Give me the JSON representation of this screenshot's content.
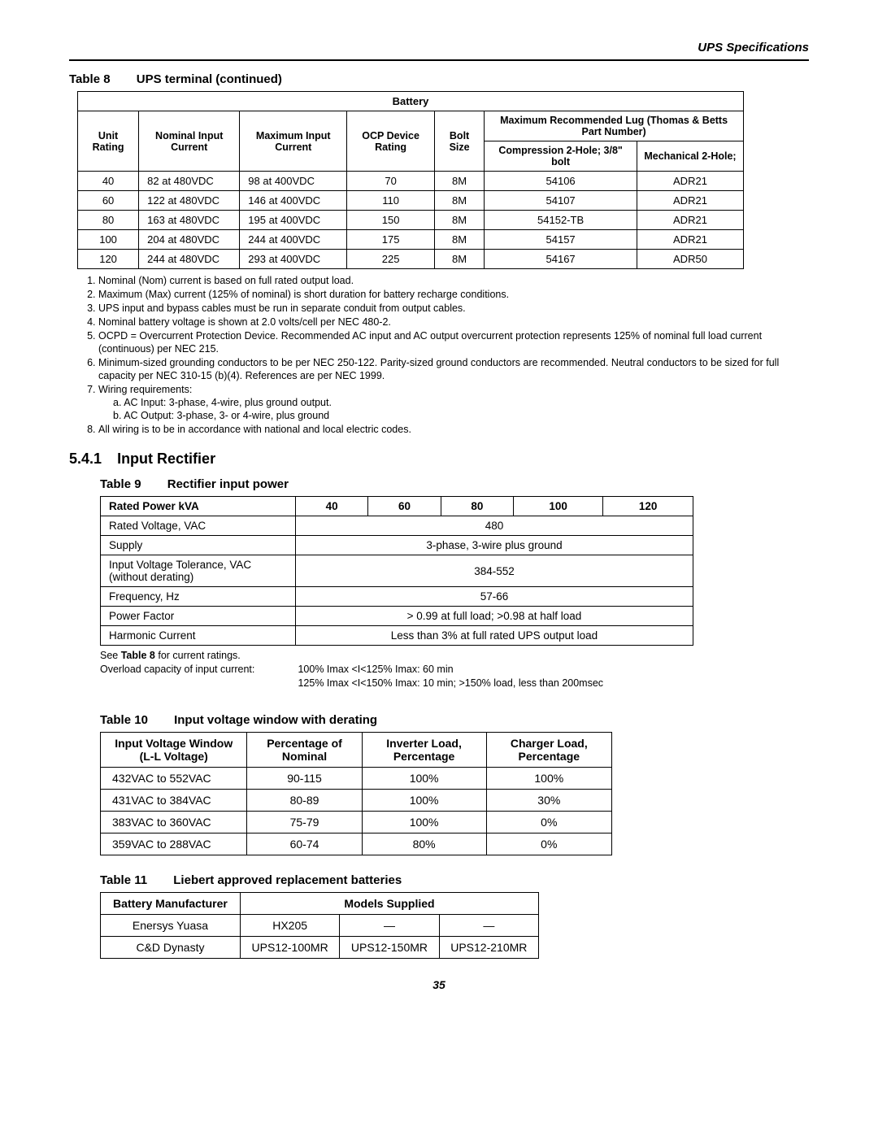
{
  "header": {
    "section_title": "UPS Specifications"
  },
  "table8": {
    "caption_num": "Table 8",
    "caption_text": "UPS terminal (continued)",
    "battery_label": "Battery",
    "head_lug": "Maximum Recommended Lug (Thomas & Betts Part Number)",
    "cols": {
      "unit_rating": "Unit Rating",
      "nom_input": "Nominal Input Current",
      "max_input": "Maximum Input Current",
      "ocp": "OCP Device Rating",
      "bolt": "Bolt Size",
      "compression": "Compression 2-Hole; 3/8\" bolt",
      "mechanical": "Mechanical 2-Hole;"
    },
    "rows": [
      {
        "ur": "40",
        "nom": "82 at 480VDC",
        "max": "98 at 400VDC",
        "ocp": "70",
        "bolt": "8M",
        "comp": "54106",
        "mech": "ADR21"
      },
      {
        "ur": "60",
        "nom": "122 at 480VDC",
        "max": "146 at 400VDC",
        "ocp": "110",
        "bolt": "8M",
        "comp": "54107",
        "mech": "ADR21"
      },
      {
        "ur": "80",
        "nom": "163 at 480VDC",
        "max": "195 at 400VDC",
        "ocp": "150",
        "bolt": "8M",
        "comp": "54152-TB",
        "mech": "ADR21"
      },
      {
        "ur": "100",
        "nom": "204 at 480VDC",
        "max": "244 at 400VDC",
        "ocp": "175",
        "bolt": "8M",
        "comp": "54157",
        "mech": "ADR21"
      },
      {
        "ur": "120",
        "nom": "244 at 480VDC",
        "max": "293 at 400VDC",
        "ocp": "225",
        "bolt": "8M",
        "comp": "54167",
        "mech": "ADR50"
      }
    ]
  },
  "notes": {
    "n1": "Nominal (Nom) current is based on full rated output load.",
    "n2": "Maximum (Max) current (125% of nominal) is short duration for battery recharge conditions.",
    "n3": "UPS input and bypass cables must be run in separate conduit from output cables.",
    "n4": "Nominal battery voltage is shown at 2.0 volts/cell per NEC 480-2.",
    "n5": "OCPD = Overcurrent Protection Device. Recommended AC input and AC output overcurrent protection represents 125% of nominal full load current (continuous) per NEC 215.",
    "n6": "Minimum-sized grounding conductors to be per NEC 250-122. Parity-sized ground conductors are recommended. Neutral conductors to be sized for full capacity per NEC 310-15 (b)(4). References are per NEC 1999.",
    "n7": "Wiring requirements:",
    "n7a": "a. AC Input: 3-phase, 4-wire, plus ground output.",
    "n7b": "b. AC Output: 3-phase, 3- or 4-wire, plus ground",
    "n8": "All wiring is to be in accordance with national and local electric codes."
  },
  "section541": {
    "num": "5.4.1",
    "title": "Input Rectifier"
  },
  "table9": {
    "caption_num": "Table 9",
    "caption_text": "Rectifier input power",
    "head_rated": "Rated Power kVA",
    "kva": [
      "40",
      "60",
      "80",
      "100",
      "120"
    ],
    "rows": [
      {
        "label": "Rated Voltage, VAC",
        "value": "480"
      },
      {
        "label": "Supply",
        "value": "3-phase, 3-wire plus ground"
      },
      {
        "label": "Input Voltage Tolerance, VAC (without derating)",
        "value": "384-552"
      },
      {
        "label": "Frequency, Hz",
        "value": "57-66"
      },
      {
        "label": "Power Factor",
        "value": "> 0.99 at full load; >0.98 at half load"
      },
      {
        "label": "Harmonic Current",
        "value": "Less than 3% at full rated UPS output load"
      }
    ],
    "note_see": "See Table 8 for current ratings.",
    "note_see_bold": "Table 8",
    "overload_label": "Overload capacity of input current:",
    "overload_l1": "100% Imax <I<125% Imax: 60 min",
    "overload_l2": "125% Imax <I<150% Imax: 10 min; >150% load, less than 200msec"
  },
  "table10": {
    "caption_num": "Table 10",
    "caption_text": "Input voltage window with derating",
    "cols": {
      "window": "Input Voltage Window (L-L Voltage)",
      "pct_nom": "Percentage of Nominal",
      "inv": "Inverter Load, Percentage",
      "chg": "Charger Load, Percentage"
    },
    "rows": [
      {
        "w": "432VAC to 552VAC",
        "p": "90-115",
        "i": "100%",
        "c": "100%"
      },
      {
        "w": "431VAC to 384VAC",
        "p": "80-89",
        "i": "100%",
        "c": "30%"
      },
      {
        "w": "383VAC to 360VAC",
        "p": "75-79",
        "i": "100%",
        "c": "0%"
      },
      {
        "w": "359VAC to 288VAC",
        "p": "60-74",
        "i": "80%",
        "c": "0%"
      }
    ]
  },
  "table11": {
    "caption_num": "Table 11",
    "caption_text": "Liebert approved replacement batteries",
    "cols": {
      "mfr": "Battery Manufacturer",
      "models": "Models Supplied"
    },
    "rows": [
      {
        "m": "Enersys Yuasa",
        "a": "HX205",
        "b": "—",
        "c": "—"
      },
      {
        "m": "C&D Dynasty",
        "a": "UPS12-100MR",
        "b": "UPS12-150MR",
        "c": "UPS12-210MR"
      }
    ]
  },
  "page_number": "35"
}
